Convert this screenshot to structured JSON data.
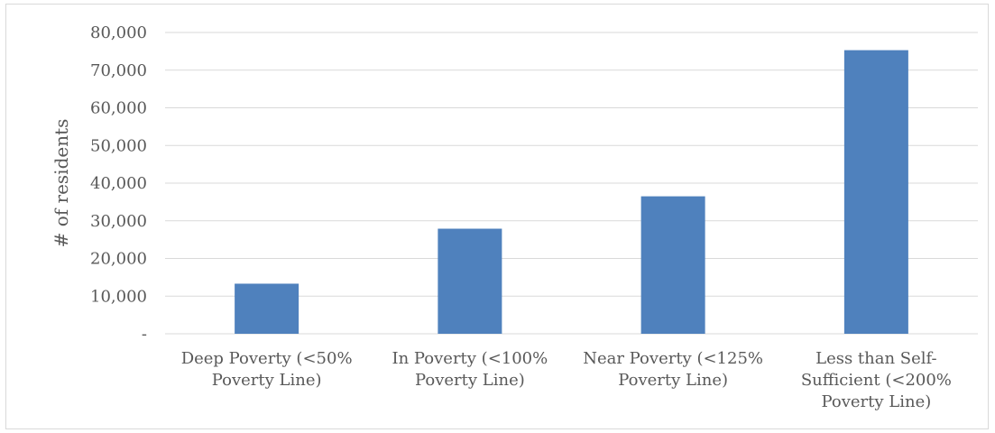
{
  "chart_data": {
    "type": "bar",
    "title": "",
    "xlabel": "",
    "ylabel": "# of residents",
    "categories": [
      [
        "Deep Poverty (<50%",
        "Poverty Line)"
      ],
      [
        "In Poverty (<100%",
        "Poverty Line)"
      ],
      [
        "Near Poverty (<125%",
        "Poverty Line)"
      ],
      [
        "Less than Self-",
        "Sufficient (<200%",
        "Poverty Line)"
      ]
    ],
    "values": [
      13300,
      27900,
      36500,
      75300
    ],
    "ylim": [
      0,
      80000
    ],
    "yticks": [
      0,
      10000,
      20000,
      30000,
      40000,
      50000,
      60000,
      70000,
      80000
    ],
    "ytick_labels": [
      "-",
      "10,000",
      "20,000",
      "30,000",
      "40,000",
      "50,000",
      "60,000",
      "70,000",
      "80,000"
    ],
    "grid": true,
    "legend": "none",
    "bar_color": "#4f81bd",
    "grid_color": "#d9d9d9",
    "text_color": "#595959"
  }
}
